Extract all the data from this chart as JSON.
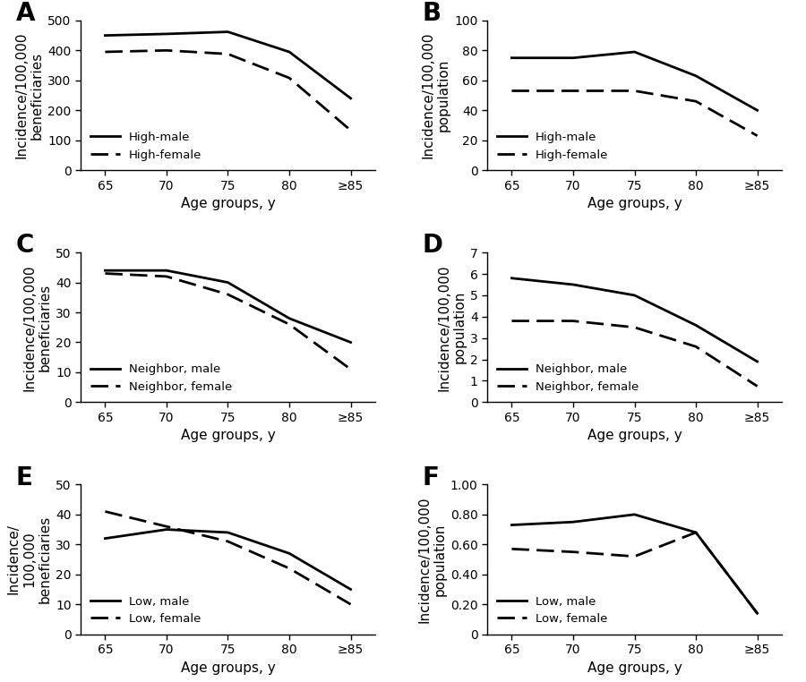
{
  "x_ticks": [
    65,
    70,
    75,
    80,
    85
  ],
  "x_tick_labels": [
    "65",
    "70",
    "75",
    "80",
    "≥85"
  ],
  "panels": [
    {
      "label": "A",
      "ylabel": "Incidence/100,000\nbeneficiaries",
      "ylim": [
        0,
        500
      ],
      "yticks": [
        0,
        100,
        200,
        300,
        400,
        500
      ],
      "ytick_labels": [
        "0",
        "100",
        "200",
        "300",
        "400",
        "500"
      ],
      "male_data": [
        450,
        455,
        462,
        395,
        240
      ],
      "female_data": [
        395,
        400,
        388,
        308,
        133
      ],
      "legend": [
        "High-male",
        "High-female"
      ],
      "legend_loc": "lower left"
    },
    {
      "label": "B",
      "ylabel": "Incidence/100,000\npopulation",
      "ylim": [
        0,
        100
      ],
      "yticks": [
        0,
        20,
        40,
        60,
        80,
        100
      ],
      "ytick_labels": [
        "0",
        "20",
        "40",
        "60",
        "80",
        "100"
      ],
      "male_data": [
        75,
        75,
        79,
        63,
        40
      ],
      "female_data": [
        53,
        53,
        53,
        46,
        23
      ],
      "legend": [
        "High-male",
        "High-female"
      ],
      "legend_loc": "lower left"
    },
    {
      "label": "C",
      "ylabel": "Incidence/100,000\nbeneficiaries",
      "ylim": [
        0,
        50
      ],
      "yticks": [
        0,
        10,
        20,
        30,
        40,
        50
      ],
      "ytick_labels": [
        "0",
        "10",
        "20",
        "30",
        "40",
        "50"
      ],
      "male_data": [
        44,
        44,
        40,
        28,
        20
      ],
      "female_data": [
        43,
        42,
        36,
        26,
        11
      ],
      "legend": [
        "Neighbor, male",
        "Neighbor, female"
      ],
      "legend_loc": "lower left"
    },
    {
      "label": "D",
      "ylabel": "Incidence/100,000\npopulation",
      "ylim": [
        0,
        7
      ],
      "yticks": [
        0,
        1,
        2,
        3,
        4,
        5,
        6,
        7
      ],
      "ytick_labels": [
        "0",
        "1",
        "2",
        "3",
        "4",
        "5",
        "6",
        "7"
      ],
      "male_data": [
        5.8,
        5.5,
        5.0,
        3.6,
        1.9
      ],
      "female_data": [
        3.8,
        3.8,
        3.5,
        2.6,
        0.75
      ],
      "legend": [
        "Neighbor, male",
        "Neighbor, female"
      ],
      "legend_loc": "lower left"
    },
    {
      "label": "E",
      "ylabel": "Incidence/\n100,000\nbeneficiaries",
      "ylim": [
        0,
        50
      ],
      "yticks": [
        0,
        10,
        20,
        30,
        40,
        50
      ],
      "ytick_labels": [
        "0",
        "10",
        "20",
        "30",
        "40",
        "50"
      ],
      "male_data": [
        32,
        35,
        34,
        27,
        15
      ],
      "female_data": [
        41,
        36,
        31,
        22,
        10
      ],
      "legend": [
        "Low, male",
        "Low, female"
      ],
      "legend_loc": "lower left"
    },
    {
      "label": "F",
      "ylabel": "Incidence/100,000\npopulation",
      "ylim": [
        0,
        1.0
      ],
      "yticks": [
        0,
        0.2,
        0.4,
        0.6,
        0.8,
        1.0
      ],
      "ytick_labels": [
        "0",
        "0.20",
        "0.40",
        "0.60",
        "0.80",
        "1.00"
      ],
      "male_data": [
        0.73,
        0.75,
        0.8,
        0.68,
        0.14
      ],
      "female_data": [
        0.57,
        0.55,
        0.52,
        0.68,
        0.14
      ],
      "legend": [
        "Low, male",
        "Low, female"
      ],
      "legend_loc": "lower left"
    }
  ],
  "line_color": "#000000",
  "line_width": 2.0,
  "background_color": "#ffffff",
  "xlabel": "Age groups, y",
  "label_fontsize": 20,
  "tick_fontsize": 10,
  "axis_label_fontsize": 11,
  "legend_fontsize": 9.5
}
